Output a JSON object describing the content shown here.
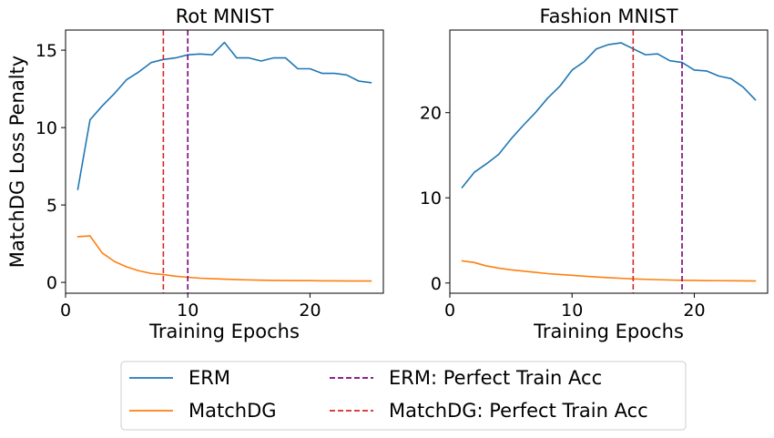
{
  "chart_data": [
    {
      "type": "line",
      "title": "Rot MNIST",
      "xlabel": "Training Epochs",
      "ylabel": "MatchDG Loss Penalty",
      "xlim": [
        0,
        26
      ],
      "ylim": [
        -0.7,
        16.3
      ],
      "xticks": [
        0,
        10,
        20
      ],
      "yticks": [
        0,
        5,
        10,
        15
      ],
      "x": [
        1,
        2,
        3,
        4,
        5,
        6,
        7,
        8,
        9,
        10,
        11,
        12,
        13,
        14,
        15,
        16,
        17,
        18,
        19,
        20,
        21,
        22,
        23,
        24,
        25
      ],
      "series": [
        {
          "name": "ERM",
          "color": "#1f77b4",
          "values": [
            6.0,
            10.5,
            11.4,
            12.2,
            13.1,
            13.6,
            14.2,
            14.4,
            14.5,
            14.7,
            14.75,
            14.7,
            15.5,
            14.5,
            14.5,
            14.3,
            14.5,
            14.5,
            13.8,
            13.8,
            13.5,
            13.5,
            13.4,
            13.0,
            12.9
          ]
        },
        {
          "name": "MatchDG",
          "color": "#ff7f0e",
          "values": [
            2.95,
            3.0,
            1.9,
            1.35,
            1.0,
            0.75,
            0.58,
            0.5,
            0.4,
            0.33,
            0.27,
            0.24,
            0.21,
            0.18,
            0.16,
            0.14,
            0.13,
            0.12,
            0.11,
            0.11,
            0.1,
            0.1,
            0.09,
            0.09,
            0.09
          ]
        }
      ],
      "vlines": [
        {
          "name": "ERM: Perfect Train Acc",
          "x": 10,
          "color": "#800080"
        },
        {
          "name": "MatchDG: Perfect Train Acc",
          "x": 8,
          "color": "#d62728"
        }
      ]
    },
    {
      "type": "line",
      "title": "Fashion MNIST",
      "xlabel": "Training Epochs",
      "ylabel": "",
      "xlim": [
        0,
        26
      ],
      "ylim": [
        -1.2,
        29.7
      ],
      "xticks": [
        0,
        10,
        20
      ],
      "yticks": [
        0,
        10,
        20
      ],
      "x": [
        1,
        2,
        3,
        4,
        5,
        6,
        7,
        8,
        9,
        10,
        11,
        12,
        13,
        14,
        15,
        16,
        17,
        18,
        19,
        20,
        21,
        22,
        23,
        24,
        25
      ],
      "series": [
        {
          "name": "ERM",
          "color": "#1f77b4",
          "values": [
            11.2,
            13.0,
            14.0,
            15.1,
            16.9,
            18.5,
            20.0,
            21.7,
            23.1,
            25.0,
            26.0,
            27.5,
            28.0,
            28.2,
            27.5,
            26.8,
            26.9,
            26.1,
            25.9,
            25.0,
            24.9,
            24.3,
            24.0,
            23.0,
            21.5
          ]
        },
        {
          "name": "MatchDG",
          "color": "#ff7f0e",
          "values": [
            2.6,
            2.4,
            2.0,
            1.75,
            1.55,
            1.4,
            1.25,
            1.1,
            1.0,
            0.9,
            0.8,
            0.7,
            0.62,
            0.55,
            0.48,
            0.43,
            0.39,
            0.35,
            0.32,
            0.3,
            0.28,
            0.27,
            0.26,
            0.25,
            0.24
          ]
        }
      ],
      "vlines": [
        {
          "name": "ERM: Perfect Train Acc",
          "x": 19,
          "color": "#800080"
        },
        {
          "name": "MatchDG: Perfect Train Acc",
          "x": 15,
          "color": "#d62728"
        }
      ]
    }
  ],
  "legend": {
    "placement": "bottom-center",
    "items": [
      {
        "label": "ERM",
        "color": "#1f77b4",
        "style": "solid"
      },
      {
        "label": "MatchDG",
        "color": "#ff7f0e",
        "style": "solid"
      },
      {
        "label": "ERM: Perfect Train Acc",
        "color": "#800080",
        "style": "dashed"
      },
      {
        "label": "MatchDG: Perfect Train Acc",
        "color": "#d62728",
        "style": "dashed"
      }
    ]
  }
}
